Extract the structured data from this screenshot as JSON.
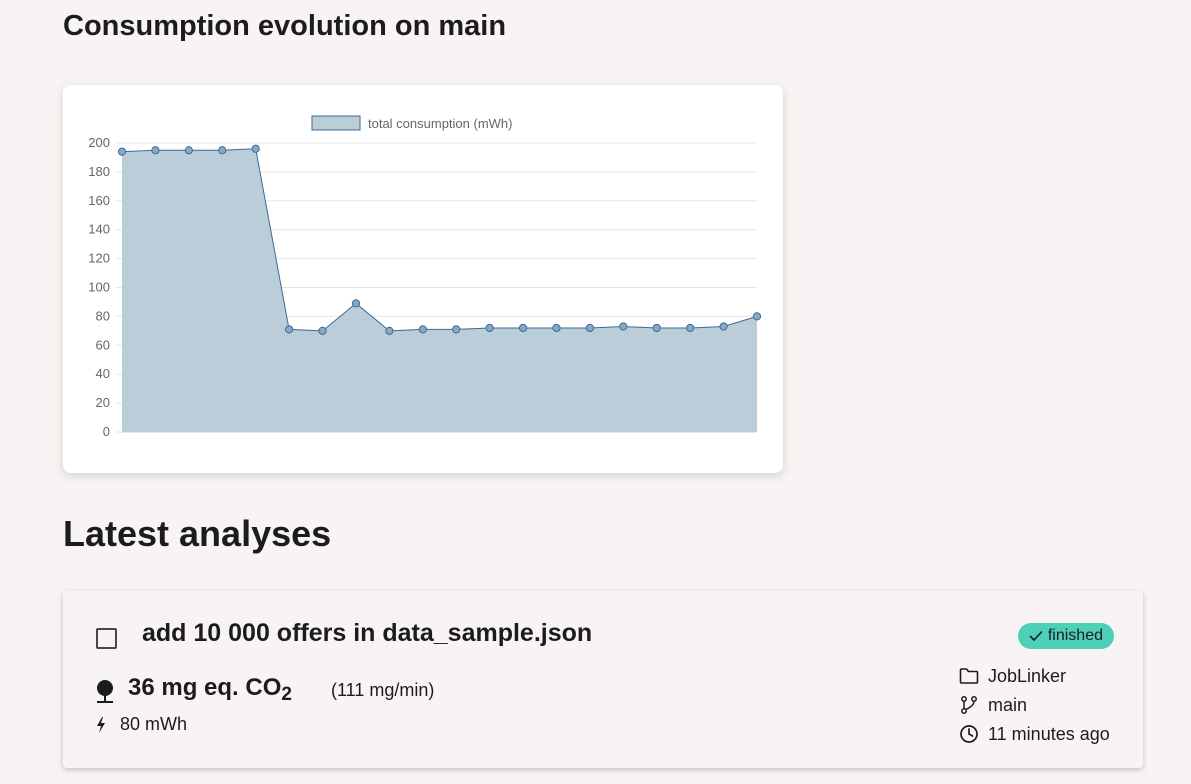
{
  "section": {
    "chart_title": "Consumption evolution on main",
    "analyses_title": "Latest analyses"
  },
  "chart_data": {
    "type": "area",
    "legend": [
      "total consumption (mWh)"
    ],
    "legend_position": "top",
    "series": [
      {
        "name": "total consumption (mWh)",
        "values": [
          194,
          195,
          195,
          195,
          196,
          71,
          70,
          89,
          70,
          71,
          71,
          72,
          72,
          72,
          72,
          73,
          72,
          72,
          73,
          80
        ]
      }
    ],
    "ylim": [
      0,
      200
    ],
    "yticks": [
      0,
      20,
      40,
      60,
      80,
      100,
      120,
      140,
      160,
      180,
      200
    ],
    "grid": true,
    "colors": {
      "fill": "#bccdda",
      "line": "#3d6a96",
      "point": "#87a9c8"
    }
  },
  "analysis": {
    "title": "add 10 000 offers in data_sample.json",
    "status": "finished",
    "co2_main": "36 mg eq. CO",
    "co2_sub": "2",
    "co2_rate": "(111 mg/min)",
    "energy": "80 mWh",
    "project": "JobLinker",
    "branch": "main",
    "time": "11 minutes ago",
    "icons": [
      "checkbox-icon",
      "check-icon",
      "tree-icon",
      "bolt-icon",
      "folder-icon",
      "git-branch-icon",
      "clock-icon"
    ]
  }
}
